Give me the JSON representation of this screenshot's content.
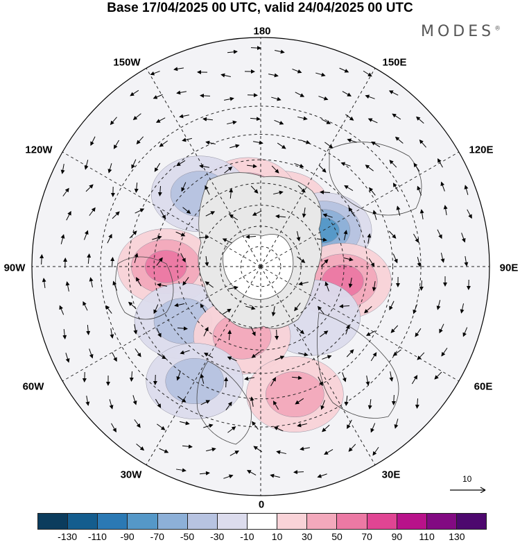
{
  "title": "Base 17/04/2025 00 UTC, valid 24/04/2025 00 UTC",
  "brand": {
    "name": "MODES",
    "mark": "®"
  },
  "longitude_labels": {
    "top": "180",
    "bottom": "0",
    "left": "90W",
    "right": "90E",
    "upper_left_1": "150W",
    "upper_left_2": "120W",
    "upper_right_1": "150E",
    "upper_right_2": "120E",
    "lower_left_1": "60W",
    "lower_left_2": "30W",
    "lower_right_1": "60E",
    "lower_right_2": "30E"
  },
  "reference_vector": {
    "label": "10"
  },
  "colorbar": {
    "colors": [
      "#0b3c5d",
      "#145d8e",
      "#2b79b4",
      "#5598c8",
      "#8db0d8",
      "#b7c3e1",
      "#dcdced",
      "#ffffff",
      "#f9d3d8",
      "#f3a9bc",
      "#ec79a4",
      "#e04593",
      "#b8128a",
      "#820a82",
      "#4d086e"
    ],
    "tick_labels": [
      "-130",
      "-110",
      "-90",
      "-70",
      "-50",
      "-30",
      "-10",
      "10",
      "30",
      "50",
      "70",
      "90",
      "110",
      "130"
    ]
  },
  "map": {
    "projection": "north-polar-stereographic",
    "field": "geopotential height anomaly",
    "anomaly_centers": [
      {
        "lon_lat": "160E/60N",
        "sign": "positive",
        "peak": 70
      },
      {
        "lon_lat": "170W/55N",
        "sign": "positive",
        "peak": 50
      },
      {
        "lon_lat": "140W/45N",
        "sign": "negative",
        "peak": -50
      },
      {
        "lon_lat": "120E/55N",
        "sign": "negative",
        "peak": -90
      },
      {
        "lon_lat": "90W/45N",
        "sign": "positive",
        "peak": 70
      },
      {
        "lon_lat": "80E/50N",
        "sign": "positive",
        "peak": 70
      },
      {
        "lon_lat": "55W/45N",
        "sign": "negative",
        "peak": -50
      },
      {
        "lon_lat": "45E/55N",
        "sign": "negative",
        "peak": -30
      },
      {
        "lon_lat": "15W/55N",
        "sign": "positive",
        "peak": 50
      },
      {
        "lon_lat": "30W/30N",
        "sign": "negative",
        "peak": -50
      },
      {
        "lon_lat": "15E/30N",
        "sign": "positive",
        "peak": 50
      }
    ]
  }
}
